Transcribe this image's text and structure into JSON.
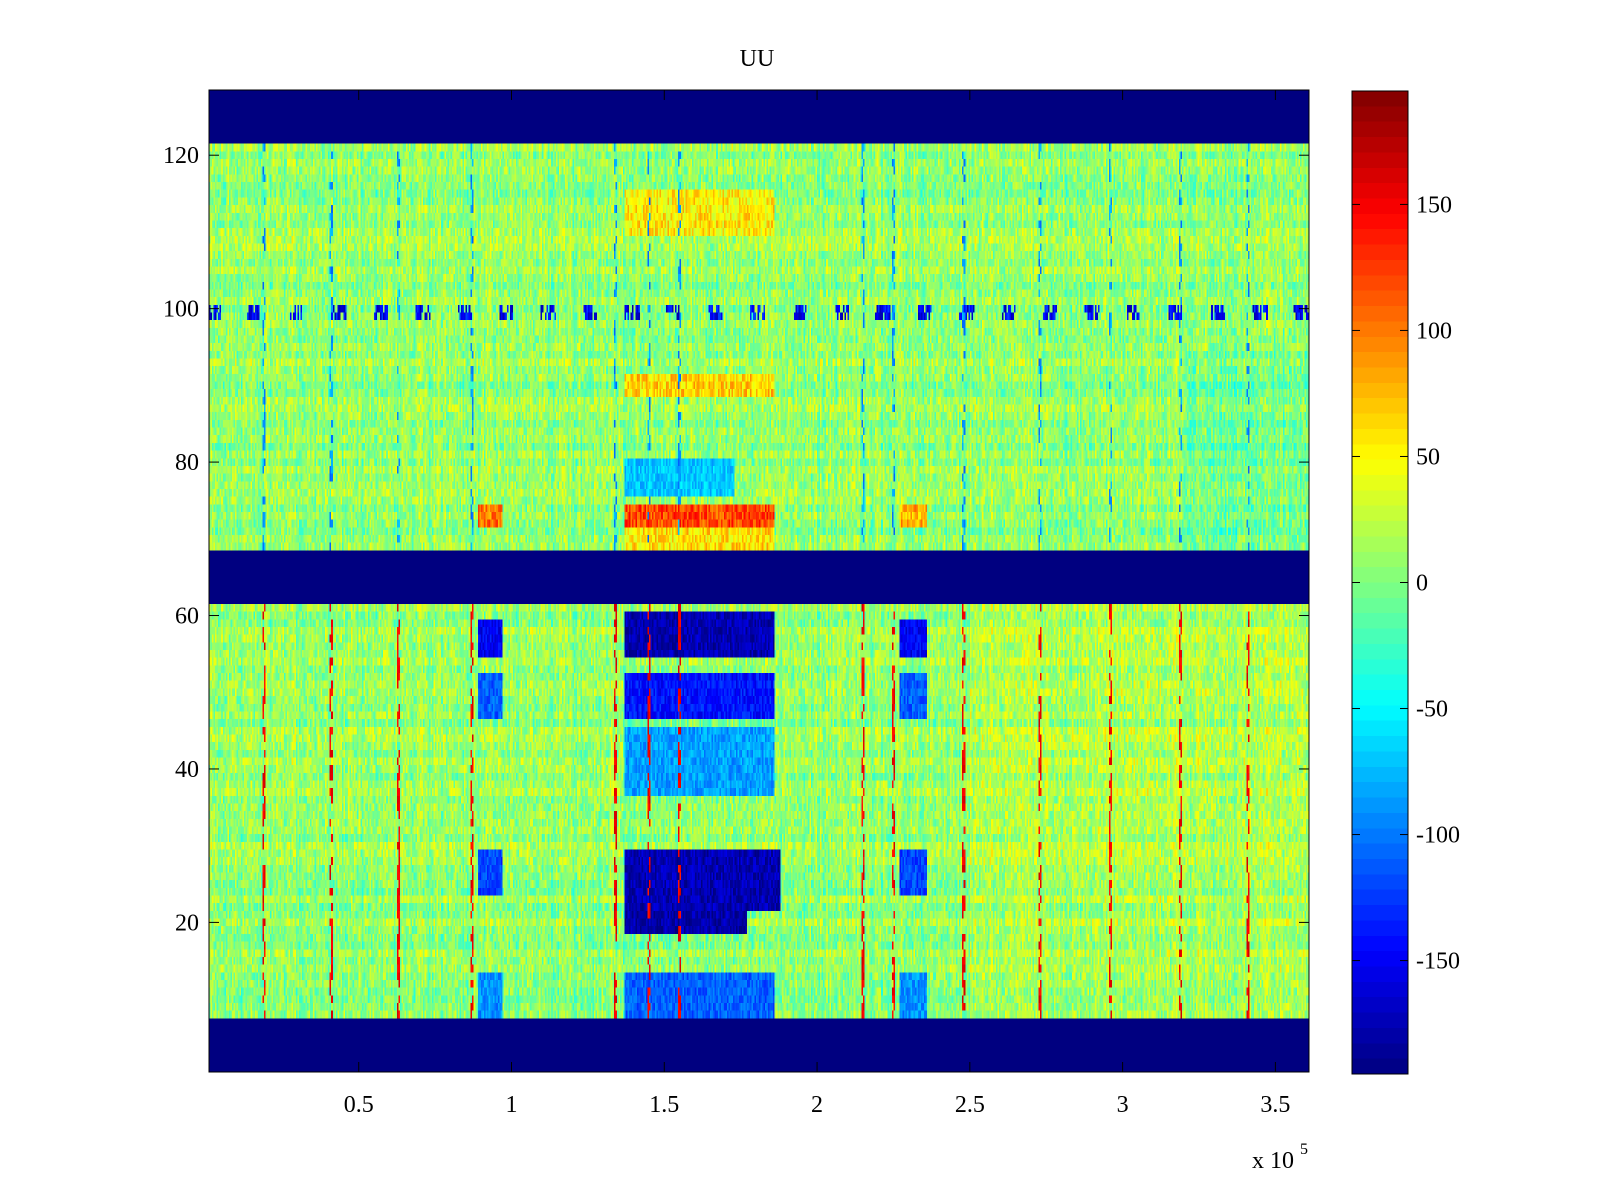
{
  "chart_data": {
    "type": "heatmap",
    "title": "UU",
    "xlabel": "",
    "ylabel": "",
    "x_exponent_label": "x 10",
    "x_exponent_power": "5",
    "xlim": [
      0.01,
      3.61
    ],
    "ylim": [
      0.5,
      128.5
    ],
    "x_ticks": [
      {
        "value": 0.5,
        "label": "0.5"
      },
      {
        "value": 1.0,
        "label": "1"
      },
      {
        "value": 1.5,
        "label": "1.5"
      },
      {
        "value": 2.0,
        "label": "2"
      },
      {
        "value": 2.5,
        "label": "2.5"
      },
      {
        "value": 3.0,
        "label": "3"
      },
      {
        "value": 3.5,
        "label": "3.5"
      }
    ],
    "y_ticks": [
      {
        "value": 20,
        "label": "20"
      },
      {
        "value": 40,
        "label": "40"
      },
      {
        "value": 60,
        "label": "60"
      },
      {
        "value": 80,
        "label": "80"
      },
      {
        "value": 100,
        "label": "100"
      },
      {
        "value": 120,
        "label": "120"
      }
    ],
    "colorbar": {
      "colormap": "jet",
      "clim": [
        -195,
        195
      ],
      "ticks": [
        {
          "value": 150,
          "label": "150"
        },
        {
          "value": 100,
          "label": "100"
        },
        {
          "value": 50,
          "label": "50"
        },
        {
          "value": 0,
          "label": "0"
        },
        {
          "value": -50,
          "label": "-50"
        },
        {
          "value": -100,
          "label": "-100"
        },
        {
          "value": -150,
          "label": "-150"
        }
      ]
    },
    "background_value": 8,
    "masked_value": -195,
    "masked_row_ranges": [
      [
        1,
        7
      ],
      [
        62,
        68
      ],
      [
        122,
        128
      ]
    ],
    "red_streak_value": 150,
    "red_streak_x": [
      0.19,
      0.41,
      0.63,
      0.87,
      1.34,
      1.45,
      1.55,
      2.15,
      2.25,
      2.48,
      2.73,
      2.96,
      3.19,
      3.41
    ],
    "deep_blue_regions": [
      {
        "x": [
          1.37,
          1.86
        ],
        "y": [
          55,
          60
        ],
        "value": -175
      },
      {
        "x": [
          1.37,
          1.86
        ],
        "y": [
          47,
          52
        ],
        "value": -140
      },
      {
        "x": [
          1.37,
          1.86
        ],
        "y": [
          37,
          45
        ],
        "value": -85
      },
      {
        "x": [
          1.37,
          1.88
        ],
        "y": [
          22,
          29
        ],
        "value": -175
      },
      {
        "x": [
          1.37,
          1.77
        ],
        "y": [
          19,
          21
        ],
        "value": -180
      },
      {
        "x": [
          1.37,
          1.86
        ],
        "y": [
          8,
          13
        ],
        "value": -110
      },
      {
        "x": [
          0.89,
          0.97
        ],
        "y": [
          55,
          59
        ],
        "value": -150
      },
      {
        "x": [
          0.89,
          0.97
        ],
        "y": [
          47,
          52
        ],
        "value": -110
      },
      {
        "x": [
          0.89,
          0.97
        ],
        "y": [
          24,
          29
        ],
        "value": -120
      },
      {
        "x": [
          0.89,
          0.97
        ],
        "y": [
          8,
          13
        ],
        "value": -90
      },
      {
        "x": [
          2.27,
          2.36
        ],
        "y": [
          55,
          59
        ],
        "value": -150
      },
      {
        "x": [
          2.27,
          2.36
        ],
        "y": [
          47,
          52
        ],
        "value": -110
      },
      {
        "x": [
          2.27,
          2.36
        ],
        "y": [
          24,
          29
        ],
        "value": -120
      },
      {
        "x": [
          2.27,
          2.36
        ],
        "y": [
          8,
          13
        ],
        "value": -90
      },
      {
        "x": [
          1.37,
          1.73
        ],
        "y": [
          76,
          80
        ],
        "value": -70
      }
    ],
    "warm_regions": [
      {
        "x": [
          1.37,
          1.86
        ],
        "y": [
          72,
          74
        ],
        "value": 120
      },
      {
        "x": [
          1.37,
          1.86
        ],
        "y": [
          69,
          71
        ],
        "value": 60
      },
      {
        "x": [
          1.37,
          1.86
        ],
        "y": [
          89,
          91
        ],
        "value": 65
      },
      {
        "x": [
          1.37,
          1.86
        ],
        "y": [
          110,
          115
        ],
        "value": 55
      },
      {
        "x": [
          0.89,
          0.97
        ],
        "y": [
          72,
          74
        ],
        "value": 100
      },
      {
        "x": [
          2.27,
          2.36
        ],
        "y": [
          72,
          74
        ],
        "value": 80
      }
    ],
    "row_100_feature_value": -180
  }
}
